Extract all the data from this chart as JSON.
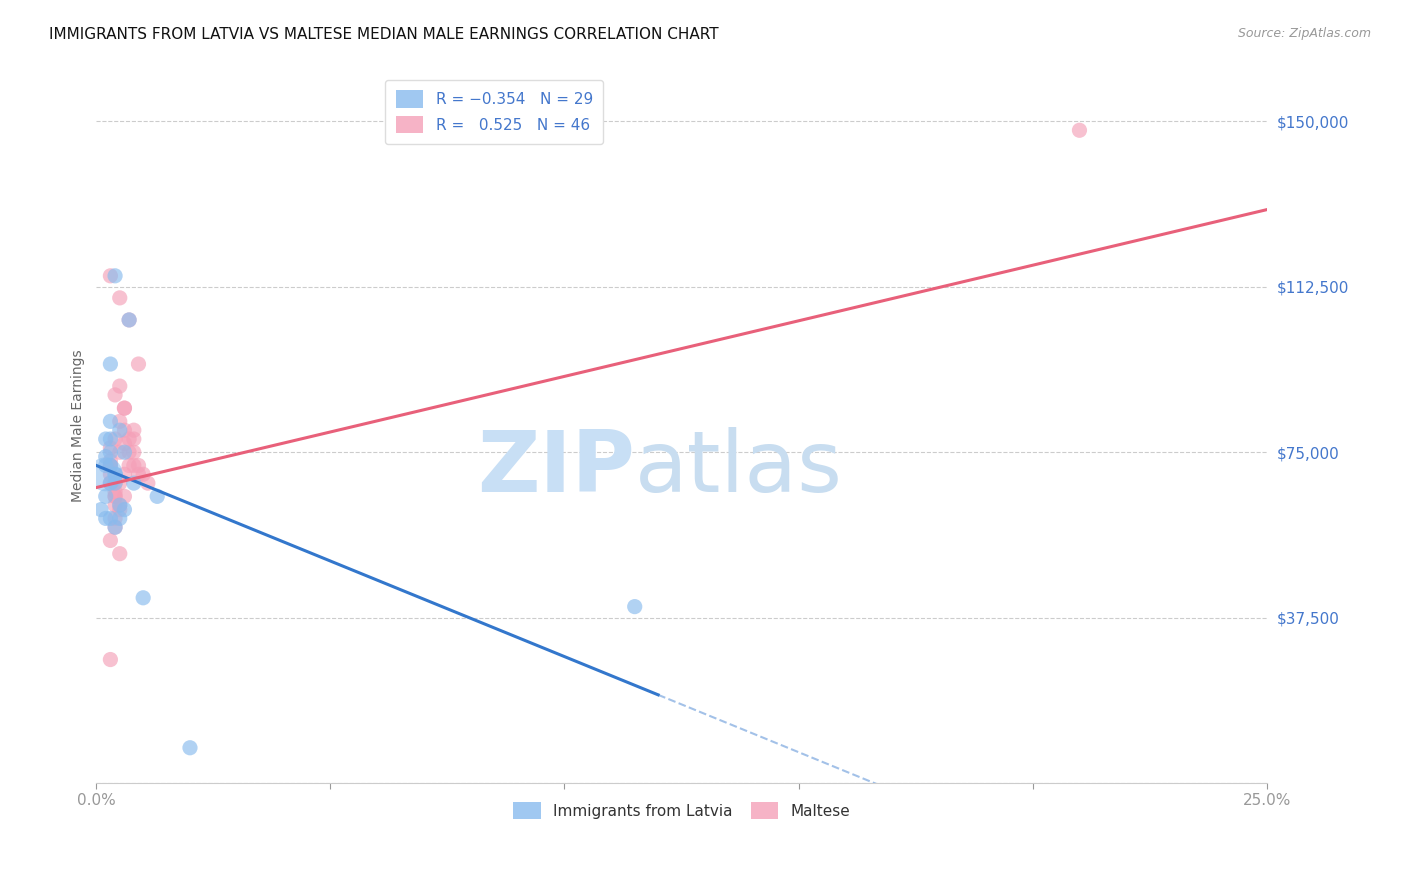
{
  "title": "IMMIGRANTS FROM LATVIA VS MALTESE MEDIAN MALE EARNINGS CORRELATION CHART",
  "source": "Source: ZipAtlas.com",
  "ylabel": "Median Male Earnings",
  "xlim": [
    0.0,
    0.25
  ],
  "ylim": [
    0,
    162000
  ],
  "blue_color": "#88bbee",
  "pink_color": "#f4a0b8",
  "blue_line_color": "#3377cc",
  "pink_line_color": "#e8607a",
  "watermark_zip": "ZIP",
  "watermark_atlas": "atlas",
  "watermark_color_zip": "#c8dff5",
  "watermark_color_atlas": "#c8ddf0",
  "background_color": "#ffffff",
  "latvia_x": [
    0.004,
    0.007,
    0.01,
    0.013,
    0.005,
    0.006,
    0.008,
    0.003,
    0.004,
    0.003,
    0.004,
    0.005,
    0.003,
    0.004,
    0.005,
    0.006,
    0.003,
    0.004,
    0.002,
    0.003,
    0.002,
    0.003,
    0.002,
    0.002,
    0.003,
    0.002,
    0.001,
    0.02,
    0.115
  ],
  "latvia_y": [
    115000,
    105000,
    42000,
    65000,
    80000,
    75000,
    68000,
    95000,
    70000,
    75000,
    68000,
    63000,
    78000,
    70000,
    60000,
    62000,
    82000,
    58000,
    74000,
    72000,
    78000,
    68000,
    72000,
    65000,
    60000,
    60000,
    62000,
    8000,
    40000
  ],
  "latvia_sizes": [
    120,
    120,
    120,
    120,
    120,
    120,
    120,
    120,
    120,
    120,
    120,
    120,
    120,
    120,
    120,
    120,
    120,
    120,
    120,
    120,
    120,
    120,
    120,
    120,
    120,
    120,
    120,
    120,
    120
  ],
  "latvia_large_idx": 0,
  "latvia_large_size": 600,
  "maltese_x": [
    0.003,
    0.005,
    0.007,
    0.009,
    0.006,
    0.008,
    0.005,
    0.006,
    0.007,
    0.008,
    0.009,
    0.01,
    0.011,
    0.008,
    0.009,
    0.006,
    0.007,
    0.008,
    0.004,
    0.005,
    0.006,
    0.004,
    0.005,
    0.006,
    0.007,
    0.005,
    0.006,
    0.003,
    0.004,
    0.005,
    0.003,
    0.004,
    0.003,
    0.004,
    0.005,
    0.004,
    0.003,
    0.003,
    0.004,
    0.004,
    0.003,
    0.005,
    0.003,
    0.004,
    0.003,
    0.21
  ],
  "maltese_y": [
    115000,
    110000,
    105000,
    95000,
    85000,
    80000,
    90000,
    85000,
    75000,
    78000,
    72000,
    70000,
    68000,
    75000,
    70000,
    80000,
    78000,
    72000,
    88000,
    82000,
    77000,
    78000,
    75000,
    70000,
    72000,
    68000,
    65000,
    70000,
    65000,
    62000,
    73000,
    68000,
    72000,
    66000,
    63000,
    60000,
    76000,
    68000,
    63000,
    58000,
    55000,
    52000,
    28000,
    65000,
    72000,
    148000
  ],
  "maltese_sizes": [
    120,
    120,
    120,
    120,
    120,
    120,
    120,
    120,
    120,
    120,
    120,
    120,
    120,
    120,
    120,
    120,
    120,
    120,
    120,
    120,
    120,
    120,
    120,
    120,
    120,
    120,
    120,
    120,
    120,
    120,
    120,
    120,
    120,
    120,
    120,
    120,
    120,
    120,
    120,
    120,
    120,
    120,
    120,
    120,
    120,
    120
  ],
  "blue_line_x0": 0.0,
  "blue_line_y0": 72000,
  "blue_line_x1": 0.12,
  "blue_line_y1": 20000,
  "blue_line_solid_end": 0.12,
  "blue_line_dash_end": 0.25,
  "pink_line_x0": 0.0,
  "pink_line_y0": 67000,
  "pink_line_x1": 0.25,
  "pink_line_y1": 130000
}
